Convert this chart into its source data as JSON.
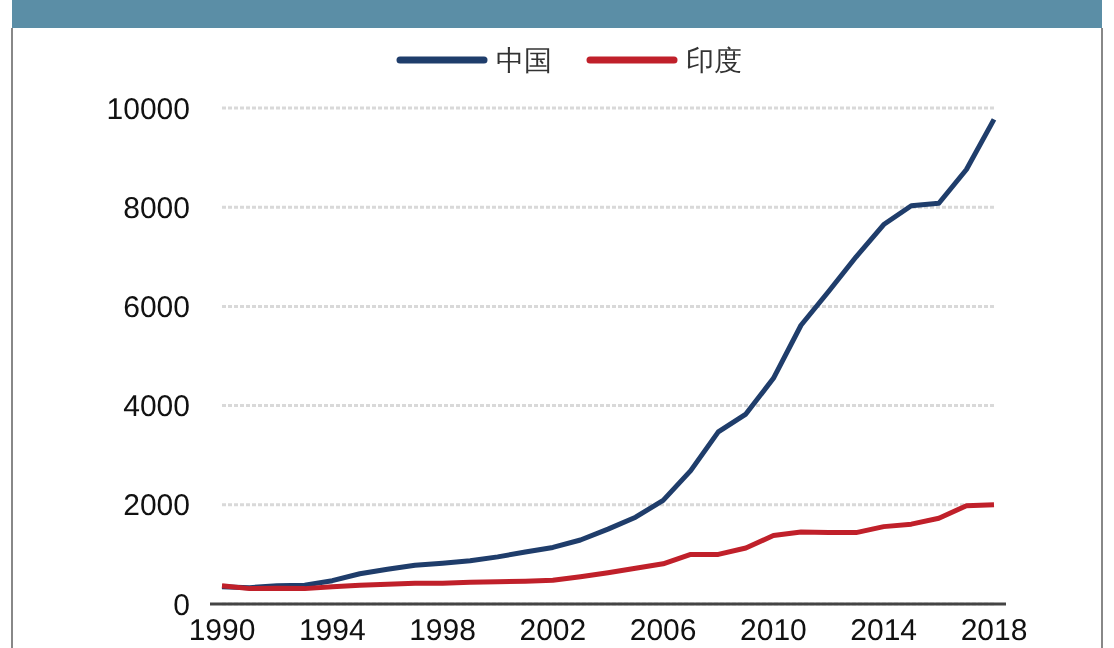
{
  "chart_data": {
    "type": "line",
    "x": [
      1990,
      1991,
      1992,
      1993,
      1994,
      1995,
      1996,
      1997,
      1998,
      1999,
      2000,
      2001,
      2002,
      2003,
      2004,
      2005,
      2006,
      2007,
      2008,
      2009,
      2010,
      2011,
      2012,
      2013,
      2014,
      2015,
      2016,
      2017,
      2018
    ],
    "series": [
      {
        "name": "中国",
        "color": "#1f3d6b",
        "values": [
          350,
          330,
          370,
          380,
          470,
          610,
          700,
          780,
          820,
          870,
          950,
          1050,
          1140,
          1290,
          1510,
          1750,
          2090,
          2690,
          3470,
          3830,
          4550,
          5620,
          6300,
          7000,
          7650,
          8030,
          8080,
          8760,
          9770
        ]
      },
      {
        "name": "印度",
        "color": "#c0202a",
        "values": [
          370,
          310,
          320,
          310,
          350,
          380,
          400,
          420,
          420,
          440,
          450,
          460,
          480,
          550,
          630,
          720,
          810,
          1000,
          1000,
          1130,
          1380,
          1450,
          1440,
          1440,
          1560,
          1610,
          1730,
          1980,
          2000
        ]
      }
    ],
    "xlim": [
      1990,
      2018
    ],
    "xticks": [
      1990,
      1994,
      1998,
      2002,
      2006,
      2010,
      2014,
      2018
    ],
    "ylim": [
      0,
      10000
    ],
    "yticks": [
      0,
      2000,
      4000,
      6000,
      8000,
      10000
    ],
    "grid": "y",
    "legend": "top",
    "marker": "none",
    "line_style": "solid"
  }
}
